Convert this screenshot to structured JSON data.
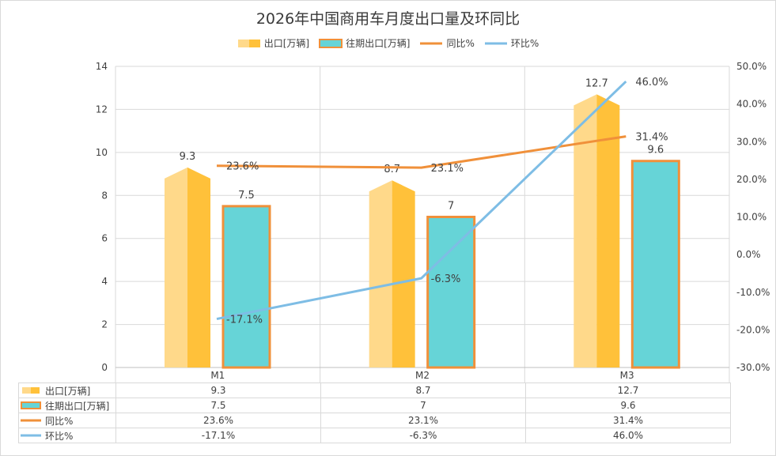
{
  "title": "2026年中国商用车月度出口量及环同比",
  "legend": [
    "出口[万辆]",
    "往期出口[万辆]",
    "同比%",
    "环比%"
  ],
  "colors": {
    "export": "#ffc13a",
    "export_light": "#ffd98a",
    "prior": "#66d4d7",
    "prior_border": "#f0903a",
    "yoy": "#f0903a",
    "mom": "#7ebde5",
    "grid": "#d9d9d9"
  },
  "chart_data": {
    "type": "bar",
    "categories": [
      "M1",
      "M2",
      "M3"
    ],
    "series": [
      {
        "name": "出口[万辆]",
        "kind": "bar",
        "axis": "left",
        "values": [
          9.3,
          8.7,
          12.7
        ],
        "labels": [
          "9.3",
          "8.7",
          "12.7"
        ]
      },
      {
        "name": "往期出口[万辆]",
        "kind": "bar",
        "axis": "left",
        "values": [
          7.5,
          7,
          9.6
        ],
        "labels": [
          "7.5",
          "7",
          "9.6"
        ]
      },
      {
        "name": "同比%",
        "kind": "line",
        "axis": "right",
        "values": [
          23.6,
          23.1,
          31.4
        ],
        "labels": [
          "23.6%",
          "23.1%",
          "31.4%"
        ]
      },
      {
        "name": "环比%",
        "kind": "line",
        "axis": "right",
        "values": [
          -17.1,
          -6.3,
          46.0
        ],
        "labels": [
          "-17.1%",
          "-6.3%",
          "46.0%"
        ]
      }
    ],
    "y_left": {
      "range": [
        0,
        14
      ],
      "ticks": [
        "0",
        "2",
        "4",
        "6",
        "8",
        "10",
        "12",
        "14"
      ]
    },
    "y_right": {
      "range": [
        -30,
        50
      ],
      "ticks": [
        "-30.0%",
        "-20.0%",
        "-10.0%",
        "0.0%",
        "10.0%",
        "20.0%",
        "30.0%",
        "40.0%",
        "50.0%"
      ]
    },
    "grid": true,
    "legend_position": "top",
    "data_table": true
  },
  "table": {
    "rows": [
      {
        "label": "出口[万辆]",
        "cells": [
          "9.3",
          "8.7",
          "12.7"
        ]
      },
      {
        "label": "往期出口[万辆]",
        "cells": [
          "7.5",
          "7",
          "9.6"
        ]
      },
      {
        "label": "同比%",
        "cells": [
          "23.6%",
          "23.1%",
          "31.4%"
        ]
      },
      {
        "label": "环比%",
        "cells": [
          "-17.1%",
          "-6.3%",
          "46.0%"
        ]
      }
    ]
  }
}
